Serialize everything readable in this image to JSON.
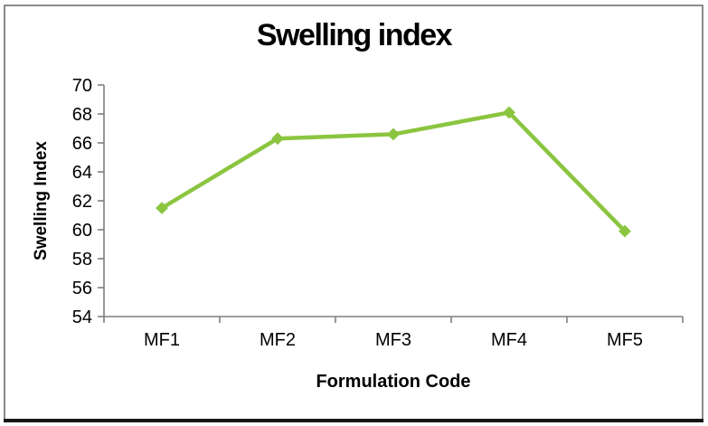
{
  "page": {
    "background_color": "#ffffff",
    "frame_border_color": "#8a8a8a",
    "bottom_edge_color": "#161616"
  },
  "chart_data": {
    "type": "line",
    "title": "Swelling index",
    "xlabel": "Formulation Code",
    "ylabel": "Swelling Index",
    "categories": [
      "MF1",
      "MF2",
      "MF3",
      "MF4",
      "MF5"
    ],
    "series": [
      {
        "name": "Swelling index",
        "values": [
          61.5,
          66.3,
          66.6,
          68.1,
          59.9
        ]
      }
    ],
    "ylim": [
      54,
      70
    ],
    "ytick_step": 2,
    "yticks": [
      54,
      56,
      58,
      60,
      62,
      64,
      66,
      68,
      70
    ],
    "grid": false,
    "legend_position": "none",
    "marker": "diamond",
    "colors": {
      "line_color": "#8BC540",
      "axis_color": "#7f7f7f",
      "text_color": "#000000"
    }
  }
}
